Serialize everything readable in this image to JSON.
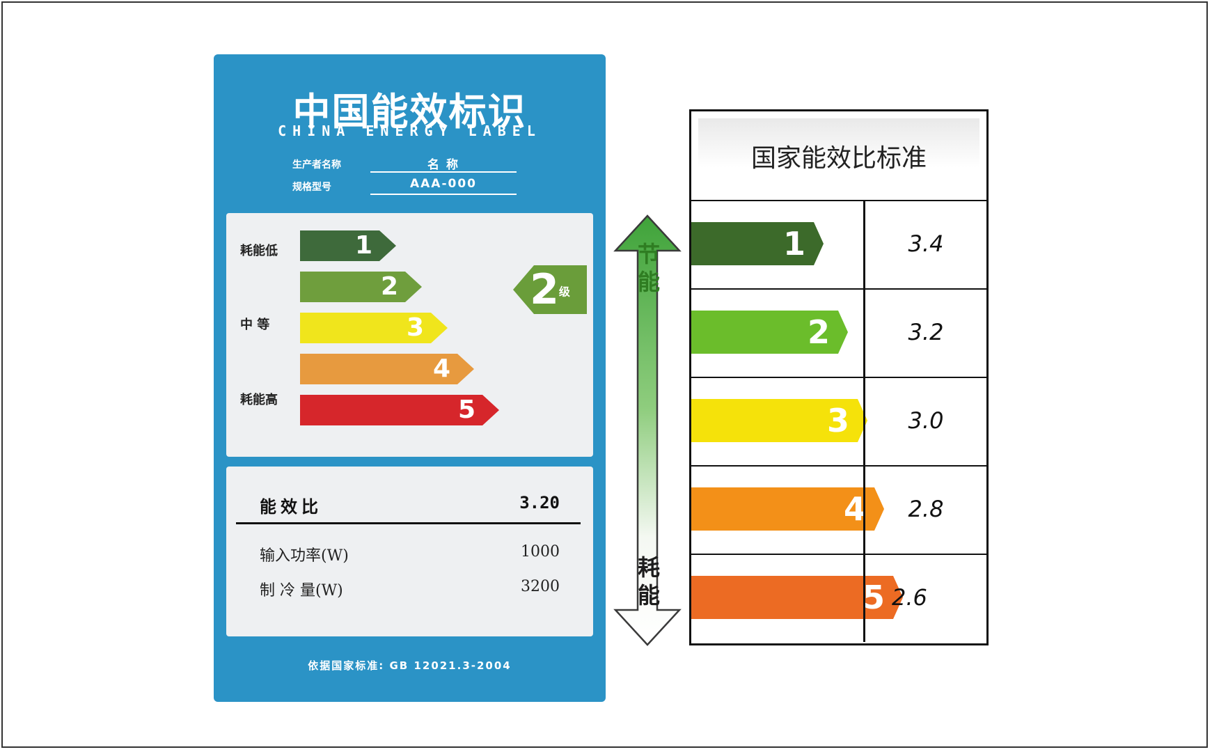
{
  "label": {
    "title": "中国能效标识",
    "subtitle": "CHINA ENERGY LABEL",
    "info": [
      {
        "label": "生产者名称",
        "value": "名 称"
      },
      {
        "label": "规格型号",
        "value": "AAA-000"
      }
    ],
    "side_labels": {
      "top": "耗能低",
      "middle": "中 等",
      "bottom": "耗能高"
    },
    "grades": [
      {
        "label": "1",
        "color": "#3e6a3b"
      },
      {
        "label": "2",
        "color": "#6f9e3d"
      },
      {
        "label": "3",
        "color": "#f0e51c"
      },
      {
        "label": "4",
        "color": "#e79a3f"
      },
      {
        "label": "5",
        "color": "#d6262b"
      }
    ],
    "current_grade": {
      "value": "2",
      "suffix": "级",
      "color": "#6a9d3a"
    },
    "spec": {
      "head_label": "能效比",
      "head_value": "3.20",
      "rows": [
        {
          "label": "输入功率(W)",
          "value": "1000"
        },
        {
          "label": "制 冷 量(W)",
          "value": "3200"
        }
      ]
    },
    "footer": "依据国家标准: GB 12021.3-2004"
  },
  "arrow": {
    "top_text": "节能",
    "bottom_text": "耗能"
  },
  "standard": {
    "title": "国家能效比标准",
    "rows": [
      {
        "grade": "1",
        "value": "3.4",
        "color": "#3c6a2a"
      },
      {
        "grade": "2",
        "value": "3.2",
        "color": "#6bbd2b"
      },
      {
        "grade": "3",
        "value": "3.0",
        "color": "#f5e20a"
      },
      {
        "grade": "4",
        "value": "2.8",
        "color": "#f39018"
      },
      {
        "grade": "5",
        "value": "2.6",
        "color": "#ec6b23"
      }
    ]
  }
}
